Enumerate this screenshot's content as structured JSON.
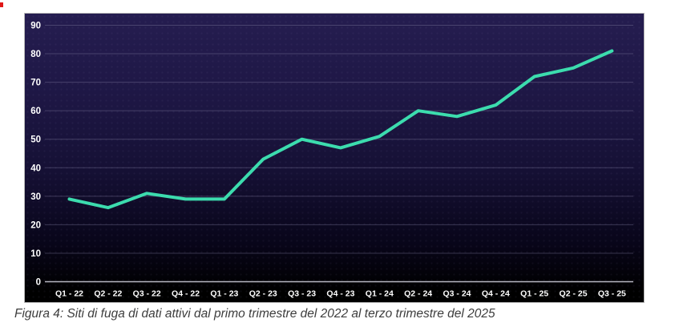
{
  "figure": {
    "caption": "Figura 4: Siti di fuga di dati attivi dal primo trimestre del 2022 al terzo trimestre del 2025"
  },
  "chart_data": {
    "type": "line",
    "title": "",
    "xlabel": "",
    "ylabel": "",
    "categories": [
      "Q1 - 22",
      "Q2 - 22",
      "Q3 - 22",
      "Q4 - 22",
      "Q1 - 23",
      "Q2 - 23",
      "Q3 - 23",
      "Q4 - 23",
      "Q1 - 24",
      "Q2 - 24",
      "Q3 - 24",
      "Q4 - 24",
      "Q1 - 25",
      "Q2 - 25",
      "Q3 - 25"
    ],
    "series": [
      {
        "name": "Siti di fuga di dati attivi",
        "values": [
          29,
          26,
          31,
          29,
          29,
          43,
          50,
          47,
          51,
          60,
          58,
          62,
          72,
          75,
          81
        ]
      }
    ],
    "ylim": [
      0,
      90
    ],
    "ytick_step": 10,
    "grid": true,
    "legend_position": "none"
  },
  "colors": {
    "line": "#3cdcae",
    "grid": "#8a86a8",
    "axis_zero": "#d8d8e4",
    "tick_text": "#ffffff",
    "caption_text": "#3d3d3d",
    "panel_border": "#b9b9b9",
    "artifact_red": "#e01818",
    "page_bg": "#ffffff"
  }
}
